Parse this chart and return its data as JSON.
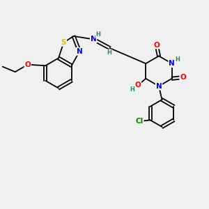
{
  "bg_color": "#f0f0f0",
  "bond_color": "#000000",
  "atom_colors": {
    "N": "#0000ff",
    "O": "#ff0000",
    "S": "#cccc00",
    "Cl": "#008800",
    "H": "#2e8b57",
    "C": "#000000"
  }
}
